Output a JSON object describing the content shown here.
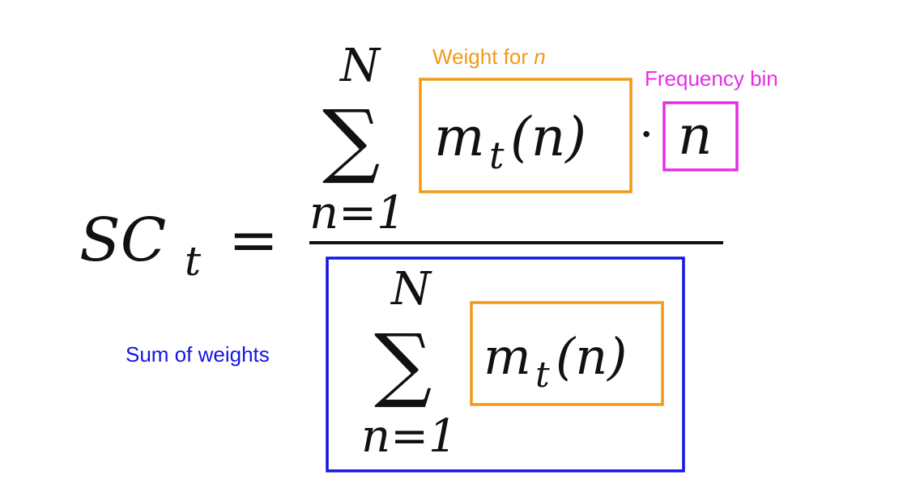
{
  "formula": {
    "lhs_symbol": "SC",
    "lhs_subscript": "t",
    "equals": "=",
    "sum_symbol": "∑",
    "sum_upper": "N",
    "sum_lower": "n=1",
    "weight_func": "m",
    "weight_sub": "t",
    "weight_arg": "(n)",
    "dot": "·",
    "bin_var": "n"
  },
  "annotations": {
    "weight_label_prefix": "Weight for ",
    "weight_label_var": "n",
    "frequency_label": "Frequency bin",
    "sum_label": "Sum of weights"
  },
  "colors": {
    "weight_box": "#f29a15",
    "frequency_box": "#e62ee6",
    "sum_box": "#1414e6",
    "weight_text": "#f29a15",
    "frequency_text": "#e62ee6",
    "sum_text": "#1414e6",
    "ink": "#111111"
  }
}
